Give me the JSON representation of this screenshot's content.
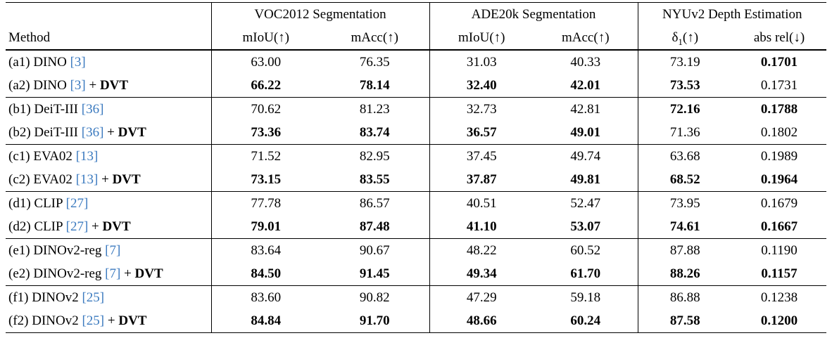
{
  "colors": {
    "citation": "#3b7abf",
    "text": "#000000",
    "background": "#ffffff"
  },
  "table": {
    "column_groups": [
      {
        "label": "VOC2012 Segmentation"
      },
      {
        "label": "ADE20k Segmentation"
      },
      {
        "label": "NYUv2 Depth Estimation"
      }
    ],
    "header": {
      "method_label": "Method",
      "voc_miou": "mIoU(↑)",
      "voc_macc": "mAcc(↑)",
      "ade_miou": "mIoU(↑)",
      "ade_macc": "mAcc(↑)",
      "delta_base": "δ",
      "delta_sub": "1",
      "delta_rest": "(↑)",
      "abs_rel": "abs rel(↓)"
    },
    "dvt_label": "DVT",
    "plus_separator": " + ",
    "rows": [
      {
        "group_start": false,
        "method": {
          "pre": "(a1) DINO ",
          "cite": "[3]",
          "dvt": false
        },
        "values": [
          {
            "v": "63.00",
            "b": false
          },
          {
            "v": "76.35",
            "b": false
          },
          {
            "v": "31.03",
            "b": false
          },
          {
            "v": "40.33",
            "b": false
          },
          {
            "v": "73.19",
            "b": false
          },
          {
            "v": "0.1701",
            "b": true
          }
        ]
      },
      {
        "group_start": false,
        "method": {
          "pre": "(a2) DINO ",
          "cite": "[3]",
          "dvt": true
        },
        "values": [
          {
            "v": "66.22",
            "b": true
          },
          {
            "v": "78.14",
            "b": true
          },
          {
            "v": "32.40",
            "b": true
          },
          {
            "v": "42.01",
            "b": true
          },
          {
            "v": "73.53",
            "b": true
          },
          {
            "v": "0.1731",
            "b": false
          }
        ]
      },
      {
        "group_start": true,
        "method": {
          "pre": "(b1) DeiT-III ",
          "cite": "[36]",
          "dvt": false
        },
        "values": [
          {
            "v": "70.62",
            "b": false
          },
          {
            "v": "81.23",
            "b": false
          },
          {
            "v": "32.73",
            "b": false
          },
          {
            "v": "42.81",
            "b": false
          },
          {
            "v": "72.16",
            "b": true
          },
          {
            "v": "0.1788",
            "b": true
          }
        ]
      },
      {
        "group_start": false,
        "method": {
          "pre": "(b2) DeiT-III ",
          "cite": "[36]",
          "dvt": true
        },
        "values": [
          {
            "v": "73.36",
            "b": true
          },
          {
            "v": "83.74",
            "b": true
          },
          {
            "v": "36.57",
            "b": true
          },
          {
            "v": "49.01",
            "b": true
          },
          {
            "v": "71.36",
            "b": false
          },
          {
            "v": "0.1802",
            "b": false
          }
        ]
      },
      {
        "group_start": true,
        "method": {
          "pre": "(c1) EVA02 ",
          "cite": "[13]",
          "dvt": false
        },
        "values": [
          {
            "v": "71.52",
            "b": false
          },
          {
            "v": "82.95",
            "b": false
          },
          {
            "v": "37.45",
            "b": false
          },
          {
            "v": "49.74",
            "b": false
          },
          {
            "v": "63.68",
            "b": false
          },
          {
            "v": "0.1989",
            "b": false
          }
        ]
      },
      {
        "group_start": false,
        "method": {
          "pre": "(c2) EVA02 ",
          "cite": "[13]",
          "dvt": true
        },
        "values": [
          {
            "v": "73.15",
            "b": true
          },
          {
            "v": "83.55",
            "b": true
          },
          {
            "v": "37.87",
            "b": true
          },
          {
            "v": "49.81",
            "b": true
          },
          {
            "v": "68.52",
            "b": true
          },
          {
            "v": "0.1964",
            "b": true
          }
        ]
      },
      {
        "group_start": true,
        "method": {
          "pre": "(d1) CLIP ",
          "cite": "[27]",
          "dvt": false
        },
        "values": [
          {
            "v": "77.78",
            "b": false
          },
          {
            "v": "86.57",
            "b": false
          },
          {
            "v": "40.51",
            "b": false
          },
          {
            "v": "52.47",
            "b": false
          },
          {
            "v": "73.95",
            "b": false
          },
          {
            "v": "0.1679",
            "b": false
          }
        ]
      },
      {
        "group_start": false,
        "method": {
          "pre": "(d2) CLIP ",
          "cite": "[27]",
          "dvt": true
        },
        "values": [
          {
            "v": "79.01",
            "b": true
          },
          {
            "v": "87.48",
            "b": true
          },
          {
            "v": "41.10",
            "b": true
          },
          {
            "v": "53.07",
            "b": true
          },
          {
            "v": "74.61",
            "b": true
          },
          {
            "v": "0.1667",
            "b": true
          }
        ]
      },
      {
        "group_start": true,
        "method": {
          "pre": "(e1) DINOv2-reg ",
          "cite": "[7]",
          "dvt": false
        },
        "values": [
          {
            "v": "83.64",
            "b": false
          },
          {
            "v": "90.67",
            "b": false
          },
          {
            "v": "48.22",
            "b": false
          },
          {
            "v": "60.52",
            "b": false
          },
          {
            "v": "87.88",
            "b": false
          },
          {
            "v": "0.1190",
            "b": false
          }
        ]
      },
      {
        "group_start": false,
        "method": {
          "pre": "(e2) DINOv2-reg ",
          "cite": "[7]",
          "dvt": true
        },
        "values": [
          {
            "v": "84.50",
            "b": true
          },
          {
            "v": "91.45",
            "b": true
          },
          {
            "v": "49.34",
            "b": true
          },
          {
            "v": "61.70",
            "b": true
          },
          {
            "v": "88.26",
            "b": true
          },
          {
            "v": "0.1157",
            "b": true
          }
        ]
      },
      {
        "group_start": true,
        "method": {
          "pre": "(f1) DINOv2 ",
          "cite": "[25]",
          "dvt": false
        },
        "values": [
          {
            "v": "83.60",
            "b": false
          },
          {
            "v": "90.82",
            "b": false
          },
          {
            "v": "47.29",
            "b": false
          },
          {
            "v": "59.18",
            "b": false
          },
          {
            "v": "86.88",
            "b": false
          },
          {
            "v": "0.1238",
            "b": false
          }
        ]
      },
      {
        "group_start": false,
        "method": {
          "pre": "(f2) DINOv2 ",
          "cite": "[25]",
          "dvt": true
        },
        "values": [
          {
            "v": "84.84",
            "b": true
          },
          {
            "v": "91.70",
            "b": true
          },
          {
            "v": "48.66",
            "b": true
          },
          {
            "v": "60.24",
            "b": true
          },
          {
            "v": "87.58",
            "b": true
          },
          {
            "v": "0.1200",
            "b": true
          }
        ]
      }
    ]
  }
}
